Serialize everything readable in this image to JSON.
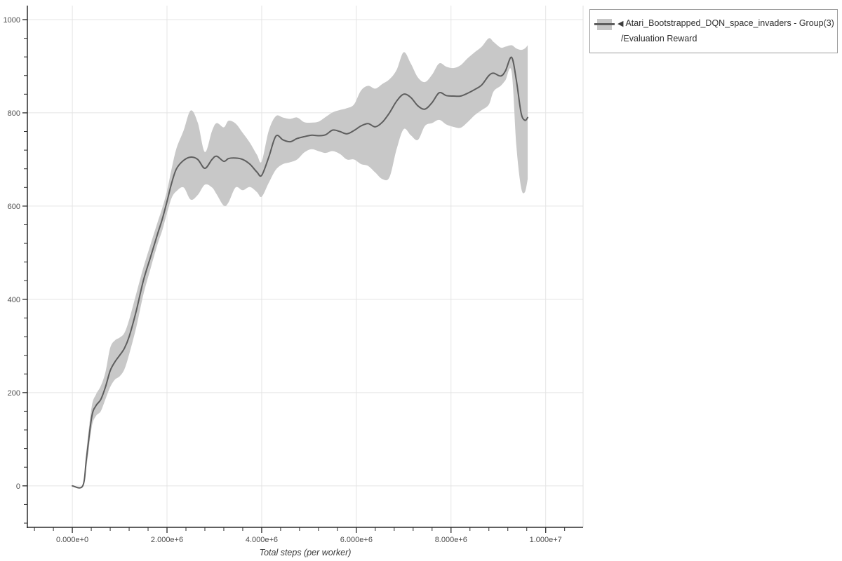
{
  "legend": {
    "marker": "◀",
    "series_name": "Atari_Bootstrapped_DQN_space_invaders - Group(3)",
    "metric": "/Evaluation Reward"
  },
  "chart_data": {
    "type": "line",
    "title": "",
    "xlabel": "Total steps (per worker)",
    "ylabel": "",
    "legend_position": "outside-right",
    "grid": true,
    "xlim": [
      -950000,
      10790000
    ],
    "ylim": [
      -89,
      1030
    ],
    "x_minor_step": 400000,
    "y_minor_step": 40,
    "xticks": [
      {
        "value": 0,
        "label": "0.000e+0"
      },
      {
        "value": 2000000,
        "label": "2.000e+6"
      },
      {
        "value": 4000000,
        "label": "4.000e+6"
      },
      {
        "value": 6000000,
        "label": "6.000e+6"
      },
      {
        "value": 8000000,
        "label": "8.000e+6"
      },
      {
        "value": 10000000,
        "label": "1.000e+7"
      }
    ],
    "yticks": [
      {
        "value": 0,
        "label": "0"
      },
      {
        "value": 200,
        "label": "200"
      },
      {
        "value": 400,
        "label": "400"
      },
      {
        "value": 600,
        "label": "600"
      },
      {
        "value": 800,
        "label": "800"
      },
      {
        "value": 1000,
        "label": "1000"
      }
    ],
    "colors": {
      "line": "#5e5e5e",
      "band": "#c8c8c8",
      "grid": "#e4e4e4",
      "spine": "#2b2b2b",
      "plot_border": "#e0e0e0"
    },
    "series": [
      {
        "name": "Atari_Bootstrapped_DQN_space_invaders - Group(3)/Evaluation Reward",
        "x": [
          0,
          220000,
          300000,
          410000,
          500000,
          600000,
          700000,
          800000,
          900000,
          1000000,
          1100000,
          1200000,
          1350000,
          1500000,
          1650000,
          1800000,
          1900000,
          2000000,
          2100000,
          2200000,
          2350000,
          2500000,
          2650000,
          2800000,
          2950000,
          3050000,
          3200000,
          3300000,
          3450000,
          3600000,
          3750000,
          3900000,
          4000000,
          4150000,
          4300000,
          4450000,
          4600000,
          4750000,
          4900000,
          5050000,
          5200000,
          5350000,
          5500000,
          5650000,
          5800000,
          5950000,
          6100000,
          6250000,
          6400000,
          6550000,
          6700000,
          6850000,
          7000000,
          7150000,
          7300000,
          7450000,
          7600000,
          7750000,
          7900000,
          8050000,
          8200000,
          8350000,
          8500000,
          8650000,
          8800000,
          8900000,
          9050000,
          9150000,
          9280000,
          9380000,
          9480000,
          9560000,
          9620000
        ],
        "mean": [
          0,
          0,
          60,
          148,
          172,
          185,
          212,
          247,
          266,
          280,
          295,
          320,
          375,
          440,
          490,
          540,
          572,
          610,
          650,
          680,
          698,
          705,
          700,
          681,
          700,
          707,
          696,
          702,
          703,
          700,
          690,
          673,
          666,
          705,
          750,
          742,
          738,
          745,
          749,
          752,
          751,
          753,
          763,
          760,
          755,
          762,
          772,
          777,
          770,
          780,
          800,
          825,
          840,
          833,
          815,
          808,
          822,
          843,
          837,
          836,
          836,
          842,
          850,
          860,
          880,
          885,
          879,
          890,
          919,
          870,
          800,
          784,
          790
        ],
        "lower": [
          0,
          0,
          42,
          126,
          150,
          160,
          186,
          212,
          228,
          235,
          250,
          282,
          340,
          410,
          465,
          518,
          548,
          585,
          618,
          632,
          640,
          614,
          624,
          646,
          640,
          625,
          601,
          608,
          640,
          634,
          641,
          630,
          620,
          650,
          678,
          690,
          694,
          700,
          715,
          722,
          718,
          714,
          718,
          712,
          700,
          700,
          690,
          686,
          672,
          658,
          662,
          722,
          765,
          752,
          742,
          772,
          778,
          785,
          775,
          770,
          768,
          780,
          795,
          806,
          818,
          846,
          858,
          870,
          888,
          730,
          640,
          630,
          658
        ],
        "upper": [
          0,
          0,
          78,
          170,
          196,
          214,
          244,
          296,
          312,
          318,
          328,
          356,
          412,
          468,
          517,
          565,
          596,
          633,
          681,
          724,
          762,
          805,
          779,
          716,
          761,
          778,
          769,
          783,
          777,
          757,
          736,
          710,
          696,
          762,
          793,
          790,
          787,
          790,
          780,
          779,
          781,
          791,
          801,
          806,
          810,
          818,
          848,
          858,
          852,
          862,
          872,
          892,
          930,
          906,
          876,
          866,
          882,
          906,
          899,
          896,
          902,
          917,
          930,
          942,
          960,
          952,
          940,
          942,
          945,
          938,
          935,
          938,
          945
        ]
      }
    ]
  }
}
